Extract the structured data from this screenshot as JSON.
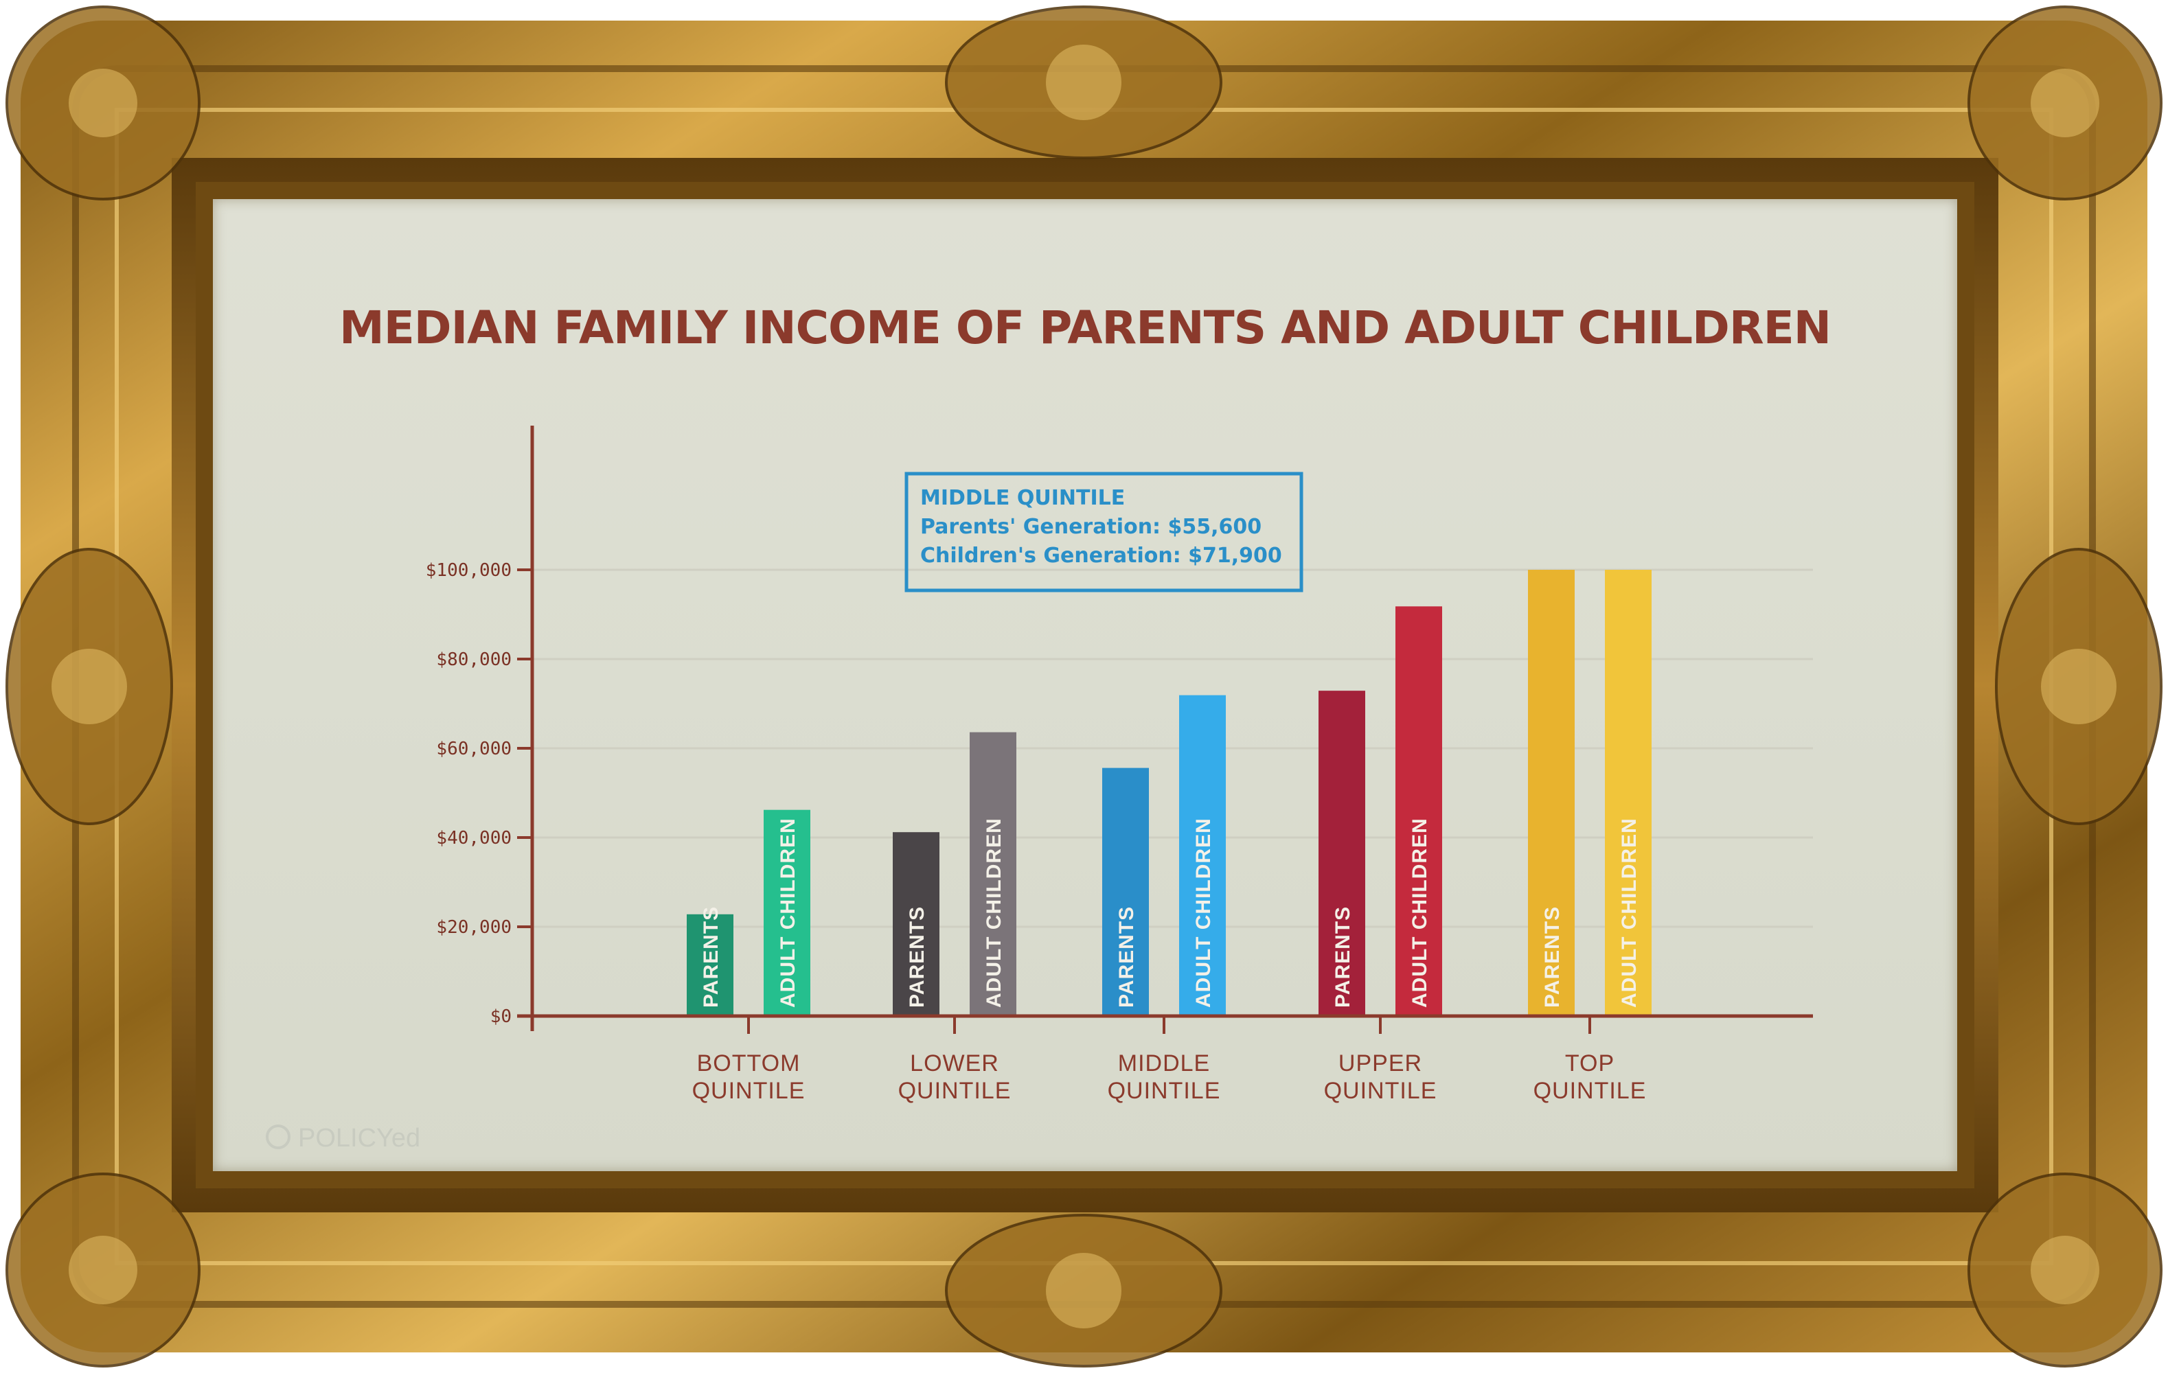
{
  "chart_data": {
    "type": "bar",
    "title": "MEDIAN FAMILY INCOME OF PARENTS AND ADULT CHILDREN",
    "categories": [
      [
        "BOTTOM",
        "QUINTILE"
      ],
      [
        "LOWER",
        "QUINTILE"
      ],
      [
        "MIDDLE",
        "QUINTILE"
      ],
      [
        "UPPER",
        "QUINTILE"
      ],
      [
        "TOP",
        "QUINTILE"
      ]
    ],
    "series": [
      {
        "name": "PARENTS",
        "values": [
          22800,
          41200,
          55600,
          72900,
          100000
        ],
        "colors": [
          "#1f9470",
          "#4a4548",
          "#2a8ec9",
          "#a3213a",
          "#e8b32e"
        ]
      },
      {
        "name": "ADULT CHILDREN",
        "values": [
          46200,
          63600,
          71900,
          91800,
          100000
        ],
        "colors": [
          "#25bf8e",
          "#7b7479",
          "#35acea",
          "#c42a3d",
          "#f1c53a"
        ]
      }
    ],
    "yticks": [
      0,
      20000,
      40000,
      60000,
      80000,
      100000
    ],
    "ytick_labels": [
      "$0",
      "$20,000",
      "$40,000",
      "$60,000",
      "$80,000",
      "$100,000"
    ],
    "ylim": [
      0,
      120000
    ],
    "grid": true,
    "annotation": {
      "lines": [
        "MIDDLE QUINTILE",
        "Parents' Generation: $55,600",
        "Children's Generation: $71,900"
      ]
    },
    "colors": {
      "axis": "#8b3a2c",
      "grid": "#cfcfc2",
      "annotation": "#2a8fc8"
    }
  },
  "logo": {
    "name": "POLICYed"
  }
}
